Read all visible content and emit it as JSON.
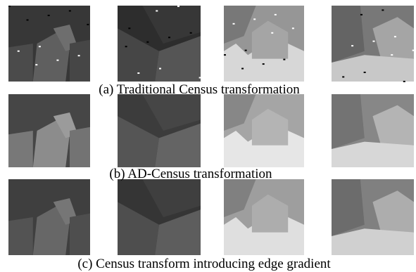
{
  "captions": [
    "(a) Traditional Census transformation",
    "(b) AD-Census transformation",
    "(c) Census transform introducing edge gradient"
  ]
}
